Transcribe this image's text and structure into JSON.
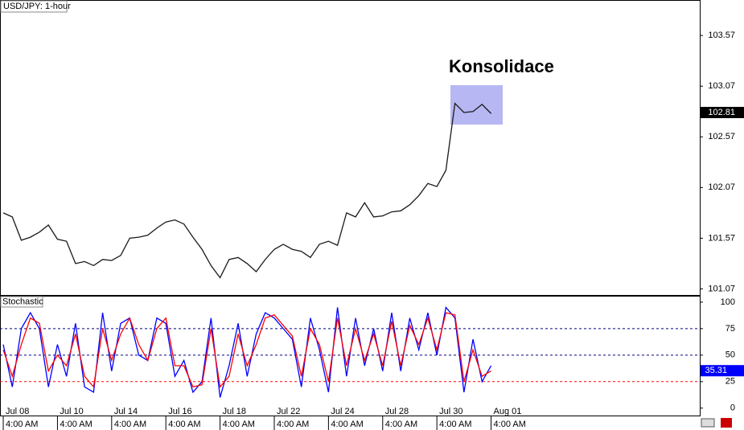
{
  "chart_data": [
    {
      "type": "line",
      "title": "USD/JPY: 1-hour",
      "annotation": "Konsolidace",
      "last_price": 102.81,
      "x": [
        0,
        1,
        2,
        3,
        4,
        5,
        6,
        7,
        8,
        9,
        10,
        11,
        12,
        13,
        14,
        15,
        16,
        17,
        18,
        19,
        20,
        21,
        22,
        23,
        24,
        25,
        26,
        27,
        28,
        29,
        30,
        31,
        32,
        33,
        34,
        35,
        36,
        37,
        38,
        39,
        40,
        41,
        42,
        43,
        44,
        45,
        46,
        47,
        48,
        49,
        50,
        51,
        52,
        53,
        54
      ],
      "series": [
        {
          "color": "#1a1a1a",
          "values": [
            101.82,
            101.78,
            101.55,
            101.58,
            101.63,
            101.7,
            101.56,
            101.54,
            101.32,
            101.34,
            101.3,
            101.36,
            101.35,
            101.4,
            101.57,
            101.58,
            101.6,
            101.67,
            101.73,
            101.75,
            101.71,
            101.58,
            101.46,
            101.3,
            101.18,
            101.36,
            101.38,
            101.32,
            101.24,
            101.36,
            101.46,
            101.51,
            101.46,
            101.44,
            101.38,
            101.51,
            101.54,
            101.5,
            101.82,
            101.78,
            101.92,
            101.78,
            101.79,
            101.83,
            101.84,
            101.9,
            101.99,
            102.11,
            102.08,
            102.24,
            102.9,
            102.81,
            102.82,
            102.89,
            102.8
          ]
        }
      ],
      "ylim": [
        101.01,
        103.92
      ],
      "yticks": [
        101.07,
        101.57,
        102.07,
        102.57,
        103.07,
        103.57
      ],
      "xlim": [
        -0.36,
        77.1
      ]
    },
    {
      "type": "line",
      "title": "Stochastic",
      "last_value": 35.31,
      "x": [
        0,
        1,
        2,
        3,
        4,
        5,
        6,
        7,
        8,
        9,
        10,
        11,
        12,
        13,
        14,
        15,
        16,
        17,
        18,
        19,
        20,
        21,
        22,
        23,
        24,
        25,
        26,
        27,
        28,
        29,
        30,
        31,
        32,
        33,
        34,
        35,
        36,
        37,
        38,
        39,
        40,
        41,
        42,
        43,
        44,
        45,
        46,
        47,
        48,
        49,
        50,
        51,
        52,
        53,
        54
      ],
      "series": [
        {
          "color": "#0000ff",
          "values": [
            60,
            20,
            75,
            90,
            75,
            20,
            60,
            30,
            80,
            20,
            15,
            90,
            35,
            80,
            85,
            50,
            45,
            85,
            80,
            30,
            45,
            15,
            25,
            85,
            10,
            40,
            80,
            30,
            70,
            90,
            85,
            75,
            65,
            20,
            85,
            55,
            15,
            95,
            30,
            85,
            40,
            75,
            35,
            90,
            35,
            85,
            55,
            90,
            50,
            95,
            85,
            15,
            65,
            25,
            40
          ]
        },
        {
          "color": "#ff0000",
          "values": [
            55,
            30,
            60,
            85,
            80,
            35,
            50,
            40,
            70,
            30,
            20,
            75,
            45,
            70,
            85,
            60,
            45,
            75,
            85,
            40,
            40,
            20,
            22,
            75,
            20,
            30,
            70,
            40,
            60,
            85,
            88,
            78,
            68,
            30,
            75,
            60,
            25,
            85,
            40,
            75,
            45,
            70,
            40,
            82,
            40,
            78,
            60,
            85,
            55,
            90,
            88,
            25,
            55,
            30,
            35
          ]
        }
      ],
      "levels": [
        {
          "value": 75,
          "color": "#000080"
        },
        {
          "value": 50,
          "color": "#000080"
        },
        {
          "value": 25,
          "color": "#ff0000"
        }
      ],
      "ylim": [
        -7,
        106
      ],
      "yticks": [
        0,
        25,
        50,
        75,
        100
      ],
      "xlim": [
        -0.36,
        77.1
      ],
      "xticks": [
        {
          "value": 0,
          "label": "Jul 08"
        },
        {
          "value": 6,
          "label": "Jul 10"
        },
        {
          "value": 12,
          "label": "Jul 14"
        },
        {
          "value": 18,
          "label": "Jul 16"
        },
        {
          "value": 24,
          "label": "Jul 18"
        },
        {
          "value": 30,
          "label": "Jul 22"
        },
        {
          "value": 36,
          "label": "Jul 24"
        },
        {
          "value": 42,
          "label": "Jul 28"
        },
        {
          "value": 48,
          "label": "Jul 30"
        },
        {
          "value": 54,
          "label": "Aug 01"
        }
      ],
      "xtick_times": [
        "4:00 AM",
        "4:00 AM",
        "4:00 AM",
        "4:00 AM",
        "4:00 AM",
        "4:00 AM",
        "4:00 AM",
        "4:00 AM",
        "4:00 AM",
        "4:00 AM"
      ]
    }
  ]
}
